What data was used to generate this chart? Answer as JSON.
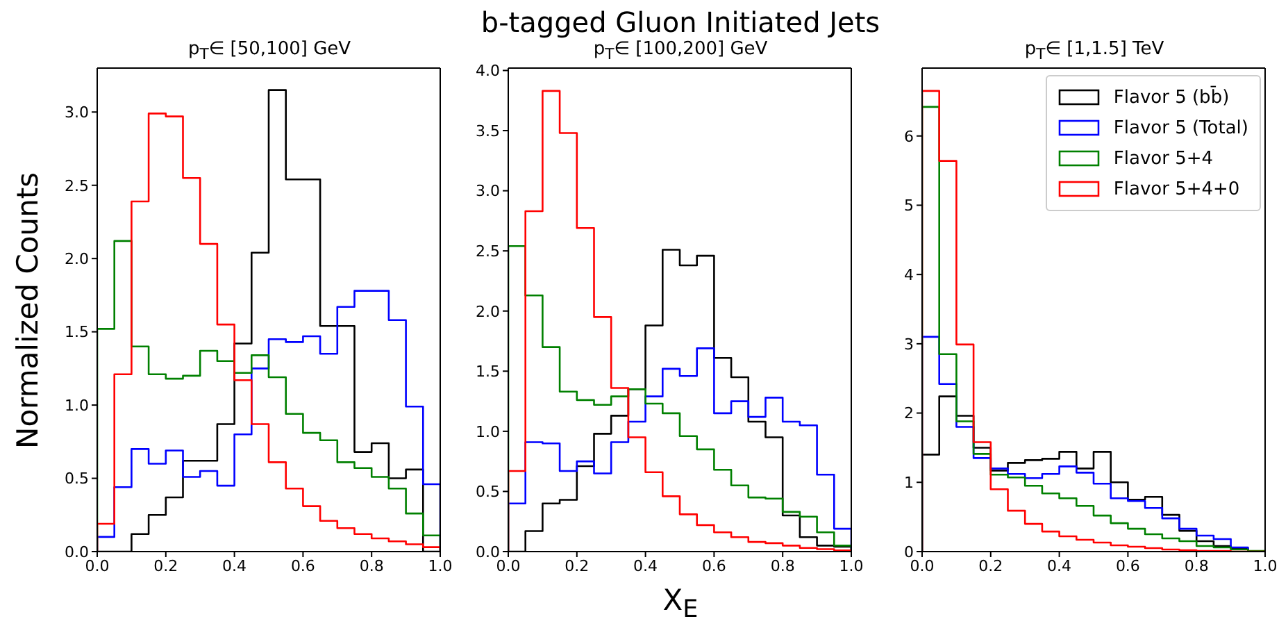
{
  "chart_data": [
    {
      "type": "histogram",
      "title": "p$_{T}$∈ [50,100] GeV",
      "ylabel": "Normalized Counts",
      "bins": [
        0,
        0.05,
        0.1,
        0.15,
        0.2,
        0.25,
        0.3,
        0.35,
        0.4,
        0.45,
        0.5,
        0.55,
        0.6,
        0.65,
        0.7,
        0.75,
        0.8,
        0.85,
        0.9,
        0.95,
        1.0
      ],
      "series": [
        {
          "color": "#000000",
          "values": [
            0,
            0,
            0.12,
            0.25,
            0.37,
            0.62,
            0.62,
            0.87,
            1.42,
            2.04,
            3.15,
            2.54,
            2.54,
            1.54,
            1.54,
            0.68,
            0.74,
            0.5,
            0.56,
            0
          ]
        },
        {
          "color": "#0000ff",
          "values": [
            0.1,
            0.44,
            0.7,
            0.6,
            0.69,
            0.51,
            0.55,
            0.45,
            0.8,
            1.25,
            1.45,
            1.43,
            1.47,
            1.35,
            1.67,
            1.78,
            1.78,
            1.58,
            0.99,
            0.46
          ]
        },
        {
          "color": "#008000",
          "values": [
            1.52,
            2.12,
            1.4,
            1.21,
            1.18,
            1.2,
            1.37,
            1.3,
            1.22,
            1.34,
            1.19,
            0.94,
            0.81,
            0.76,
            0.61,
            0.57,
            0.51,
            0.43,
            0.26,
            0.11
          ]
        },
        {
          "color": "#ff0000",
          "values": [
            0.19,
            1.21,
            2.39,
            2.99,
            2.97,
            2.55,
            2.1,
            1.55,
            1.17,
            0.87,
            0.61,
            0.43,
            0.31,
            0.21,
            0.16,
            0.12,
            0.09,
            0.07,
            0.05,
            0.03
          ]
        }
      ],
      "xlim": [
        0,
        1
      ],
      "xticks": [
        {
          "value": 0,
          "label": "0.0"
        },
        {
          "value": 0.2,
          "label": "0.2"
        },
        {
          "value": 0.4,
          "label": "0.4"
        },
        {
          "value": 0.6,
          "label": "0.6"
        },
        {
          "value": 0.8,
          "label": "0.8"
        },
        {
          "value": 1,
          "label": "1.0"
        }
      ],
      "ylim": [
        0,
        3.3
      ],
      "yticks": [
        {
          "value": 0,
          "label": "0.0"
        },
        {
          "value": 0.5,
          "label": "0.5"
        },
        {
          "value": 1,
          "label": "1.0"
        },
        {
          "value": 1.5,
          "label": "1.5"
        },
        {
          "value": 2,
          "label": "2.0"
        },
        {
          "value": 2.5,
          "label": "2.5"
        },
        {
          "value": 3,
          "label": "3.0"
        }
      ],
      "grid": false,
      "legend": false
    },
    {
      "type": "histogram",
      "title": "b-tagged Gluon Initiated Jets",
      "subtitle": "p$_{T}$∈ [100,200] GeV",
      "xlabel": "X$_{E}$",
      "bins": [
        0,
        0.05,
        0.1,
        0.15,
        0.2,
        0.25,
        0.3,
        0.35,
        0.4,
        0.45,
        0.5,
        0.55,
        0.6,
        0.65,
        0.7,
        0.75,
        0.8,
        0.85,
        0.9,
        0.95,
        1.0
      ],
      "series": [
        {
          "color": "#000000",
          "values": [
            0,
            0.17,
            0.4,
            0.43,
            0.71,
            0.98,
            1.13,
            1.35,
            1.88,
            2.51,
            2.38,
            2.46,
            1.61,
            1.45,
            1.08,
            0.95,
            0.3,
            0.12,
            0.05,
            0.04
          ]
        },
        {
          "color": "#0000ff",
          "values": [
            0.4,
            0.91,
            0.9,
            0.67,
            0.75,
            0.65,
            0.91,
            1.08,
            1.29,
            1.52,
            1.46,
            1.69,
            1.15,
            1.25,
            1.12,
            1.28,
            1.08,
            1.05,
            0.64,
            0.19
          ]
        },
        {
          "color": "#008000",
          "values": [
            2.54,
            2.13,
            1.7,
            1.33,
            1.26,
            1.22,
            1.29,
            1.35,
            1.23,
            1.15,
            0.96,
            0.85,
            0.68,
            0.55,
            0.45,
            0.44,
            0.33,
            0.29,
            0.16,
            0.05
          ]
        },
        {
          "color": "#ff0000",
          "values": [
            0.67,
            2.83,
            3.83,
            3.48,
            2.69,
            1.95,
            1.36,
            0.95,
            0.66,
            0.46,
            0.31,
            0.22,
            0.16,
            0.12,
            0.08,
            0.07,
            0.05,
            0.03,
            0.02,
            0.01
          ]
        }
      ],
      "xlim": [
        0,
        1
      ],
      "xticks": [
        {
          "value": 0,
          "label": "0.0"
        },
        {
          "value": 0.2,
          "label": "0.2"
        },
        {
          "value": 0.4,
          "label": "0.4"
        },
        {
          "value": 0.6,
          "label": "0.6"
        },
        {
          "value": 0.8,
          "label": "0.8"
        },
        {
          "value": 1,
          "label": "1.0"
        }
      ],
      "ylim": [
        0,
        4.02
      ],
      "yticks": [
        {
          "value": 0,
          "label": "0.0"
        },
        {
          "value": 0.5,
          "label": "0.5"
        },
        {
          "value": 1,
          "label": "1.0"
        },
        {
          "value": 1.5,
          "label": "1.5"
        },
        {
          "value": 2,
          "label": "2.0"
        },
        {
          "value": 2.5,
          "label": "2.5"
        },
        {
          "value": 3,
          "label": "3.0"
        },
        {
          "value": 3.5,
          "label": "3.5"
        },
        {
          "value": 4,
          "label": "4.0"
        }
      ],
      "grid": false,
      "legend": false
    },
    {
      "type": "histogram",
      "title": "p$_{T}$∈ [1,1.5] TeV",
      "bins": [
        0,
        0.05,
        0.1,
        0.15,
        0.2,
        0.25,
        0.3,
        0.35,
        0.4,
        0.45,
        0.5,
        0.55,
        0.6,
        0.65,
        0.7,
        0.75,
        0.8,
        0.85,
        0.9,
        0.95,
        1.0
      ],
      "series": [
        {
          "name": "Flavor 5 (bb̄)",
          "color": "#000000",
          "values": [
            1.4,
            2.24,
            1.96,
            1.5,
            1.17,
            1.28,
            1.32,
            1.34,
            1.44,
            1.2,
            1.44,
            1.0,
            0.75,
            0.79,
            0.53,
            0.3,
            0.15,
            0.08,
            0.05,
            0
          ]
        },
        {
          "name": "Flavor 5 (Total)",
          "color": "#0000ff",
          "values": [
            3.1,
            2.42,
            1.8,
            1.35,
            1.2,
            1.12,
            1.06,
            1.12,
            1.23,
            1.14,
            0.98,
            0.77,
            0.73,
            0.63,
            0.48,
            0.33,
            0.23,
            0.18,
            0.06,
            0
          ]
        },
        {
          "name": "Flavor 5+4",
          "color": "#008000",
          "values": [
            6.42,
            2.85,
            1.88,
            1.41,
            1.11,
            1.07,
            0.95,
            0.84,
            0.77,
            0.66,
            0.52,
            0.41,
            0.33,
            0.25,
            0.19,
            0.15,
            0.08,
            0.06,
            0.03,
            0.01
          ]
        },
        {
          "name": "Flavor 5+4+0",
          "color": "#ff0000",
          "values": [
            6.65,
            5.64,
            2.99,
            1.58,
            0.9,
            0.59,
            0.4,
            0.29,
            0.22,
            0.17,
            0.13,
            0.09,
            0.07,
            0.05,
            0.03,
            0.02,
            0.01,
            0.01,
            0,
            0
          ]
        }
      ],
      "xlim": [
        0,
        1
      ],
      "xticks": [
        {
          "value": 0,
          "label": "0.0"
        },
        {
          "value": 0.2,
          "label": "0.2"
        },
        {
          "value": 0.4,
          "label": "0.4"
        },
        {
          "value": 0.6,
          "label": "0.6"
        },
        {
          "value": 0.8,
          "label": "0.8"
        },
        {
          "value": 1,
          "label": "1.0"
        }
      ],
      "ylim": [
        0,
        6.98
      ],
      "yticks": [
        0,
        1,
        2,
        3,
        4,
        5,
        6
      ],
      "grid": false,
      "legend": "top right"
    }
  ]
}
